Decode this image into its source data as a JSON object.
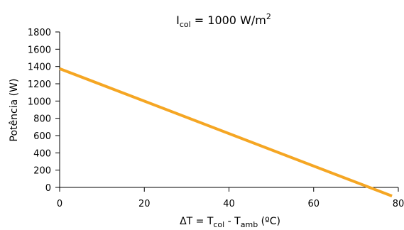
{
  "chart_data": {
    "type": "line",
    "title": {
      "main": "I",
      "sub": "col",
      "rest": " = 1000 W/m",
      "sup": "2"
    },
    "xlabel": {
      "prefix": "ΔT = T",
      "sub1": "col",
      "middle": " - T",
      "sub2": "amb",
      "suffix": " (ºC)"
    },
    "ylabel": "Potência (W)",
    "xlim": [
      0,
      80
    ],
    "ylim": [
      0,
      1800
    ],
    "xticks": [
      0,
      20,
      40,
      60,
      80
    ],
    "xtick_labels": [
      "0",
      "20",
      "40",
      "60",
      "80"
    ],
    "yticks": [
      0,
      200,
      400,
      600,
      800,
      1000,
      1200,
      1400,
      1600,
      1800
    ],
    "ytick_labels": [
      "0",
      "200",
      "400",
      "600",
      "800",
      "1000",
      "1200",
      "1400",
      "1600",
      "1800"
    ],
    "grid": false,
    "legend": "none",
    "series": [
      {
        "color": "#F5A623",
        "x": [
          0,
          78.5
        ],
        "y": [
          1375,
          -100
        ]
      }
    ]
  }
}
